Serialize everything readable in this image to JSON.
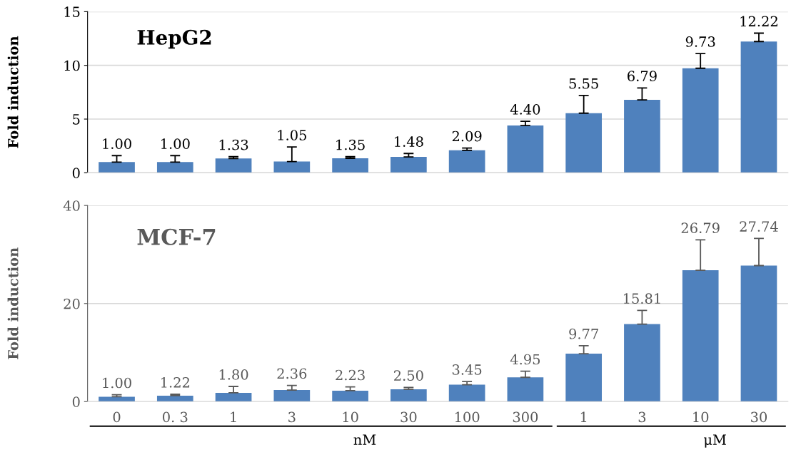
{
  "chart_data": [
    {
      "type": "bar",
      "title": "HepG2",
      "ylabel": "Fold induction",
      "categories": [
        null,
        null,
        null,
        null,
        null,
        null,
        null,
        null,
        null,
        null,
        null,
        null
      ],
      "values": [
        1.0,
        1.0,
        1.33,
        1.05,
        1.35,
        1.48,
        2.09,
        4.4,
        5.55,
        6.79,
        9.73,
        12.22
      ],
      "color": "#4f81bd",
      "errors": [
        [
          1.0,
          1.6
        ],
        [
          1.0,
          1.6
        ],
        [
          1.33,
          1.5
        ],
        [
          1.05,
          2.4
        ],
        [
          1.35,
          1.5
        ],
        [
          1.48,
          1.8
        ],
        [
          2.09,
          2.3
        ],
        [
          4.4,
          4.8
        ],
        [
          5.55,
          7.2
        ],
        [
          6.79,
          7.9
        ],
        [
          9.73,
          11.1
        ],
        [
          12.22,
          13.0
        ]
      ],
      "value_labels": [
        "1.00",
        "1.00",
        "1.33",
        "1.05",
        "1.35",
        "1.48",
        "2.09",
        "4.40",
        "5.55",
        "6.79",
        "9.73",
        "12.22"
      ],
      "ylim": [
        0,
        15
      ],
      "yticks": [
        0,
        5,
        10,
        15
      ],
      "grid": "y",
      "tick_labels": "y"
    },
    {
      "type": "bar",
      "title": "MCF-7",
      "ylabel": "Fold induction",
      "categories": [
        "0",
        "0. 3",
        "1",
        "3",
        "10",
        "30",
        "100",
        "300",
        "1",
        "3",
        "10",
        "30"
      ],
      "values": [
        1.0,
        1.22,
        1.8,
        2.36,
        2.23,
        2.5,
        3.45,
        4.95,
        9.77,
        15.81,
        26.79,
        27.74
      ],
      "color": "#4f81bd",
      "errors": [
        [
          1.0,
          1.4
        ],
        [
          1.22,
          1.5
        ],
        [
          1.8,
          3.1
        ],
        [
          2.36,
          3.3
        ],
        [
          2.23,
          3.0
        ],
        [
          2.5,
          2.9
        ],
        [
          3.45,
          4.1
        ],
        [
          4.95,
          6.2
        ],
        [
          9.77,
          11.4
        ],
        [
          15.81,
          18.6
        ],
        [
          26.79,
          33.0
        ],
        [
          27.74,
          33.3
        ]
      ],
      "value_labels": [
        "1.00",
        "1.22",
        "1.80",
        "2.36",
        "2.23",
        "2.50",
        "3.45",
        "4.95",
        "9.77",
        "15.81",
        "26.79",
        "27.74"
      ],
      "ylim": [
        0,
        40
      ],
      "yticks": [
        0,
        20,
        40
      ],
      "grid": "y",
      "annotations": [
        "nM",
        "μM"
      ]
    }
  ]
}
